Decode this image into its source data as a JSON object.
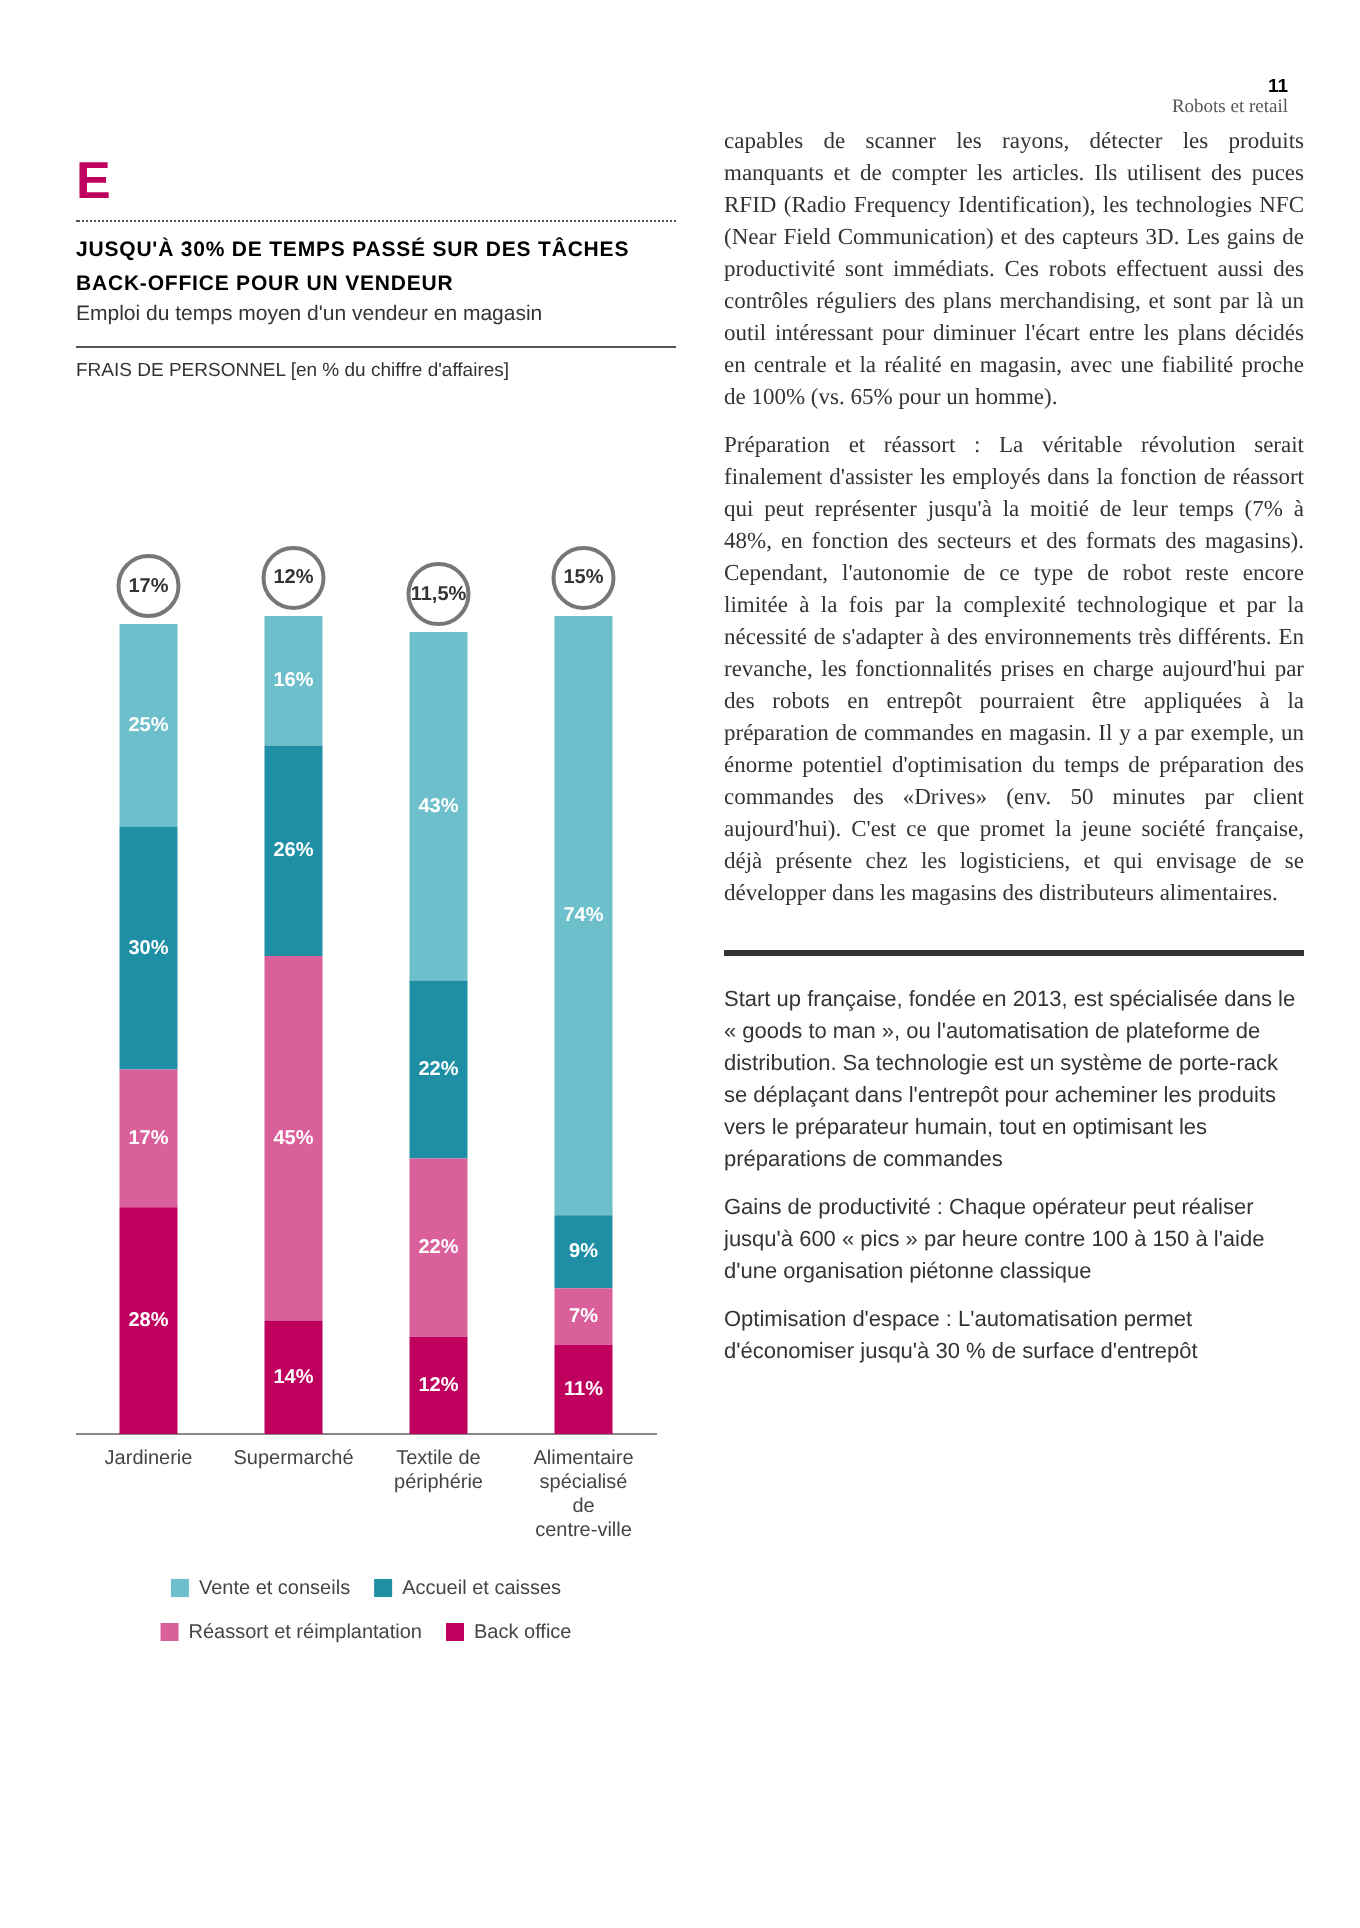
{
  "chart_data": [
    {
      "type": "bar",
      "title": "JUSQU'À 30% DE TEMPS PASSÉ SUR DES TÂCHES BACK-OFFICE POUR UN VENDEUR",
      "subtitle": "Emploi du temps moyen d'un vendeur en magasin",
      "annotations": [
        "E",
        "FRAIS DE PERSONNEL [en % du chiffre d'affaires]",
        {
          "text": "17%",
          "x": "Jardinerie",
          "y": 100
        },
        {
          "text": "12%",
          "x": "Supermarché",
          "y": 101
        },
        {
          "text": "11,5%",
          "x": "Textile de périphérie",
          "y": 99
        },
        {
          "text": "15%",
          "x": "Alimentaire spécialisé de centre-ville",
          "y": 101
        }
      ],
      "categories": [
        "Jardinerie",
        "Supermarché",
        "Textile de périphérie",
        "Alimentaire spécialisé de centre-ville"
      ],
      "stacked": true,
      "grid": false,
      "legend": "bottom",
      "tick_labels": "x",
      "series": [
        {
          "name": "Back office",
          "color": "#c0005e",
          "values": [
            28,
            14,
            12,
            11
          ],
          "value_labels": [
            "28%",
            "14%",
            "12%",
            "11%"
          ]
        },
        {
          "name": "Réassort et réimplantation",
          "color": "#d9609a",
          "values": [
            17,
            45,
            22,
            7
          ],
          "value_labels": [
            "17%",
            "45%",
            "22%",
            "7%"
          ]
        },
        {
          "name": "Accueil et caisses",
          "color": "#1f8fa6",
          "values": [
            30,
            26,
            22,
            9
          ],
          "value_labels": [
            "30%",
            "26%",
            "22%",
            "9%"
          ]
        },
        {
          "name": "Vente et conseils",
          "color": "#6cbfcb",
          "values": [
            25,
            16,
            43,
            74
          ],
          "value_labels": [
            "25%",
            "16%",
            "43%",
            "74%"
          ]
        }
      ]
    },
    {
      "type": "other",
      "annotations": [
        "11",
        "Robots et retail",
        "capables de scanner les rayons, détecter les produits manquants et de compter les articles. Ils utilisent des puces RFID (Radio Frequency Identification), les technologies NFC (Near Field Communication) et des capteurs 3D. Les gains de productivité sont immédiats. Ces robots effectuent aussi des contrôles réguliers des plans merchandising, et sont par là un outil intéressant pour diminuer l'écart entre les plans décidés en centrale et la réalité en magasin, avec une fiabilité proche de 100% (vs. 65% pour un homme).",
        "Préparation et réassort : La véritable révolution serait finalement d'assister les employés dans la fonction de réassort qui peut représenter jusqu'à la moitié de leur temps (7% à 48%, en fonction des secteurs et des formats des magasins). Cependant, l'autonomie de ce type de robot reste encore limitée à la fois par la complexité technologique et par la nécessité de s'adapter à des environnements très différents. En revanche, les fonctionnalités prises en charge aujourd'hui par des robots en entrepôt pourraient être appliquées à la préparation de commandes en magasin. Il y a par exemple, un énorme potentiel d'optimisation du temps de préparation des commandes des «Drives» (env. 50 minutes par client aujourd'hui). C'est ce que promet la jeune société française, déjà présente chez les logisticiens, et qui envisage de se développer dans les magasins des distributeurs alimentaires.",
        "Start up française, fondée en 2013, est spécialisée dans le « goods to man », ou l'automatisation de plateforme de distribution. Sa technologie est un système de porte-rack se déplaçant dans l'entrepôt pour acheminer les produits vers le préparateur humain, tout en optimisant les préparations de commandes",
        "Gains de productivité : Chaque opérateur peut réaliser jusqu'à 600 « pics » par heure contre 100 à 150 à l'aide d'une organisation piétonne classique",
        "Optimisation d'espace : L'automatisation permet d'économiser jusqu'à 30 % de surface d'entrepôt"
      ]
    }
  ]
}
